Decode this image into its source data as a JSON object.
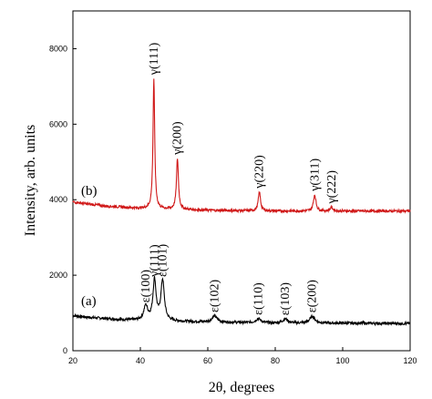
{
  "chart_data": {
    "type": "line",
    "xlabel": "2θ, degrees",
    "ylabel": "Intensity, arb. units",
    "xlim": [
      20,
      120
    ],
    "ylim": [
      0,
      9000
    ],
    "x_ticks": [
      20,
      40,
      60,
      80,
      100,
      120
    ],
    "y_ticks": [
      0,
      2000,
      4000,
      6000,
      8000
    ],
    "grid": false,
    "colors": {
      "a": "#000000",
      "b": "#d01818"
    },
    "series": [
      {
        "name": "(a)",
        "color": "#000000",
        "baseline": [
          [
            20,
            930
          ],
          [
            25,
            880
          ],
          [
            30,
            850
          ],
          [
            35,
            820
          ],
          [
            40,
            800
          ],
          [
            60,
            760
          ],
          [
            80,
            730
          ],
          [
            100,
            730
          ],
          [
            120,
            720
          ]
        ],
        "peaks": [
          {
            "label": "ε(100)",
            "x": 41.6,
            "height": 380,
            "width": 0.7
          },
          {
            "label": "γ(111)",
            "x": 44.2,
            "height": 1070,
            "width": 0.55
          },
          {
            "label": "ε(101)",
            "x": 46.6,
            "height": 1070,
            "width": 0.6
          },
          {
            "label": "ε(102)",
            "x": 62.0,
            "height": 160,
            "width": 0.9
          },
          {
            "label": "ε(110)",
            "x": 75.0,
            "height": 110,
            "width": 0.9
          },
          {
            "label": "ε(103)",
            "x": 83.0,
            "height": 110,
            "width": 0.9
          },
          {
            "label": "ε(200)",
            "x": 91.0,
            "height": 180,
            "width": 0.9
          }
        ]
      },
      {
        "name": "(b)",
        "color": "#d01818",
        "baseline": [
          [
            20,
            3940
          ],
          [
            25,
            3880
          ],
          [
            30,
            3830
          ],
          [
            40,
            3770
          ],
          [
            60,
            3720
          ],
          [
            80,
            3700
          ],
          [
            100,
            3700
          ],
          [
            120,
            3700
          ]
        ],
        "peaks": [
          {
            "label": "γ(111)",
            "x": 44.0,
            "height": 3450,
            "width": 0.3
          },
          {
            "label": "γ(200)",
            "x": 51.0,
            "height": 1350,
            "width": 0.35
          },
          {
            "label": "γ(220)",
            "x": 75.3,
            "height": 500,
            "width": 0.4
          },
          {
            "label": "γ(311)",
            "x": 91.7,
            "height": 430,
            "width": 0.45
          },
          {
            "label": "γ(222)",
            "x": 96.7,
            "height": 100,
            "width": 0.45
          }
        ]
      }
    ],
    "series_labels": [
      "(a)",
      "(b)"
    ],
    "annotations": [
      {
        "text": "γ(111)",
        "series": "b",
        "x": 44.0
      },
      {
        "text": "γ(200)",
        "series": "b",
        "x": 51.0
      },
      {
        "text": "γ(220)",
        "series": "b",
        "x": 75.3
      },
      {
        "text": "γ(311)",
        "series": "b",
        "x": 91.7
      },
      {
        "text": "γ(222)",
        "series": "b",
        "x": 96.7
      },
      {
        "text": "ε(100)",
        "series": "a",
        "x": 41.6
      },
      {
        "text": "γ(111)",
        "series": "a",
        "x": 44.2
      },
      {
        "text": "ε(101)",
        "series": "a",
        "x": 46.6
      },
      {
        "text": "ε(102)",
        "series": "a",
        "x": 62.0
      },
      {
        "text": "ε(110)",
        "series": "a",
        "x": 75.0
      },
      {
        "text": "ε(103)",
        "series": "a",
        "x": 83.0
      },
      {
        "text": "ε(200)",
        "series": "a",
        "x": 91.0
      }
    ]
  }
}
